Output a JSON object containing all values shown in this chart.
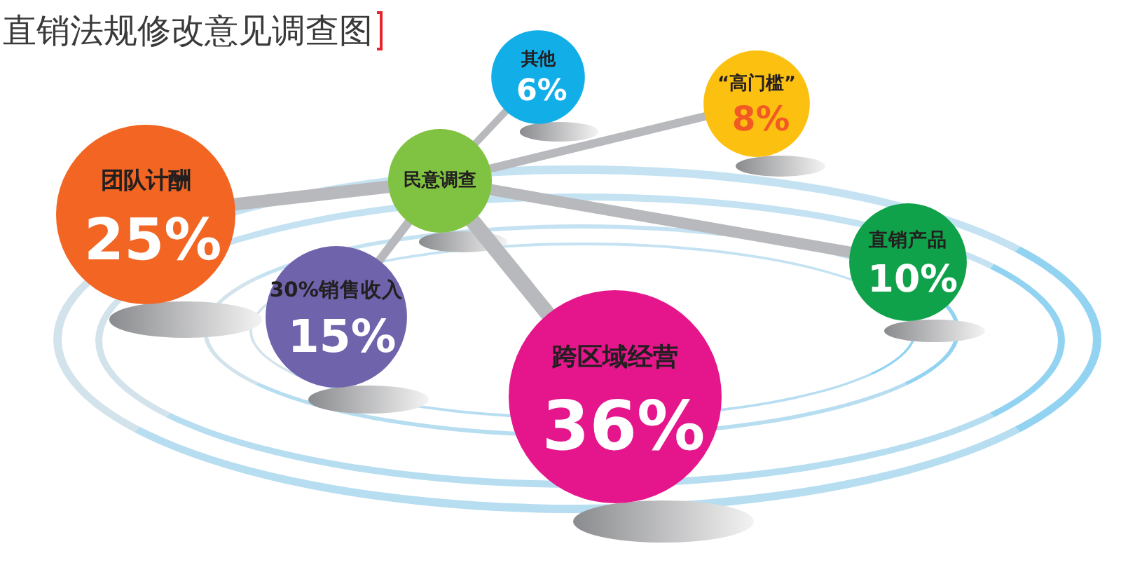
{
  "chart_data": {
    "type": "other",
    "title": "直销法规修改意见调查图",
    "categories": [
      "团队计酬",
      "30%销售收入",
      "其他",
      "跨区域经营",
      "“高门槛”",
      "直销产品"
    ],
    "values": [
      25,
      15,
      6,
      36,
      8,
      10
    ],
    "value_labels": [
      "25%",
      "15%",
      "6%",
      "36%",
      "8%",
      "10%"
    ],
    "colors": [
      "#f26522",
      "#6f63ab",
      "#12aee8",
      "#e5168c",
      "#fcc010",
      "#10a24a"
    ],
    "annotations": [
      "民意调查"
    ]
  }
}
